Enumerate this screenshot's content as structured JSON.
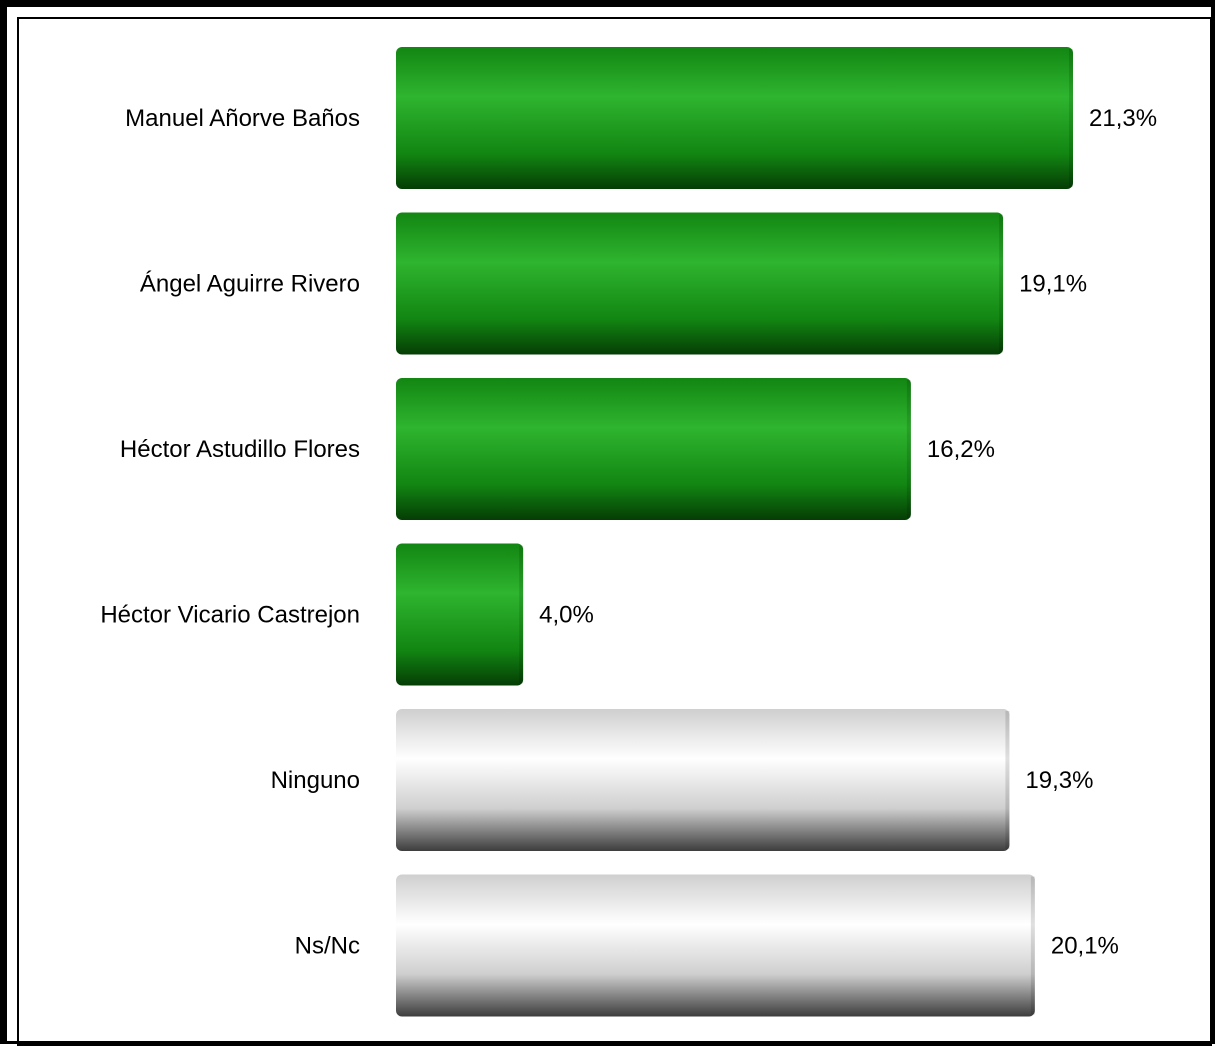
{
  "chart_data": {
    "type": "bar",
    "orientation": "horizontal",
    "categories": [
      "Manuel Añorve Baños",
      "Ángel Aguirre Rivero",
      "Héctor Astudillo Flores",
      "Héctor Vicario Castrejon",
      "Ninguno",
      "Ns/Nc"
    ],
    "values": [
      21.3,
      19.1,
      16.2,
      4.0,
      19.3,
      20.1
    ],
    "value_labels": [
      "21,3%",
      "19,1%",
      "16,2%",
      "4,0%",
      "19,3%",
      "20,1%"
    ],
    "bar_styles": [
      "green",
      "green",
      "green",
      "green",
      "gray",
      "gray"
    ],
    "xlim": [
      0,
      21.3
    ],
    "grid": false,
    "legend": "none"
  },
  "colors": {
    "green_light": "#2fb52f",
    "green_mid": "#128612",
    "green_dark": "#053d05",
    "gray_light": "#ffffff",
    "gray_mid": "#cfcfcf",
    "gray_dark": "#3d3d3d"
  }
}
